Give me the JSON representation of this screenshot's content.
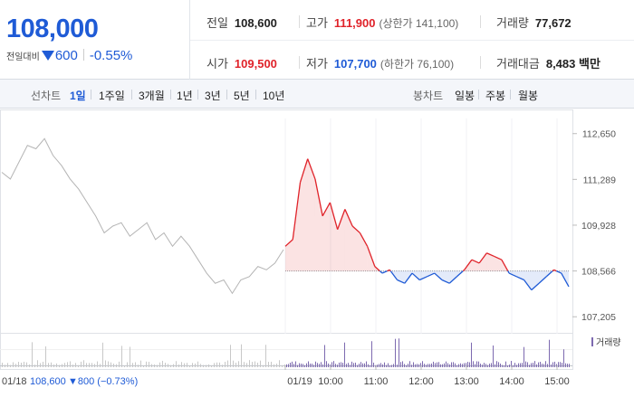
{
  "summary": {
    "price": "108,000",
    "change_label": "전일대비",
    "change_amount": "600",
    "change_pct": "-0.55%"
  },
  "stats": {
    "prev_close": {
      "label": "전일",
      "value": "108,600"
    },
    "high": {
      "label": "고가",
      "value": "111,900",
      "sub": "(상한가 141,100)"
    },
    "volume": {
      "label": "거래량",
      "value": "77,672"
    },
    "open": {
      "label": "시가",
      "value": "109,500"
    },
    "low": {
      "label": "저가",
      "value": "107,700",
      "sub": "(하한가 76,100)"
    },
    "trade_value": {
      "label": "거래대금",
      "value": "8,483 백만"
    }
  },
  "tabs": {
    "line_label": "선차트",
    "line_items": [
      "1일",
      "1주일",
      "3개월",
      "1년",
      "3년",
      "5년",
      "10년"
    ],
    "candle_label": "봉차트",
    "candle_items": [
      "일봉",
      "주봉",
      "월봉"
    ]
  },
  "colors": {
    "up": "#e0232a",
    "down": "#1f5bd6",
    "prev": "#b4b4b4",
    "volume": "#7d6ab0"
  },
  "chart_data": {
    "type": "line",
    "y_ticks": [
      "112,650",
      "111,289",
      "109,928",
      "108,566",
      "107,205"
    ],
    "y_tick_values": [
      112650,
      111289,
      109928,
      108566,
      107205
    ],
    "ylim": [
      106700,
      113100
    ],
    "baseline": 108566,
    "volume_legend": "거래량",
    "x_tick_labels": [
      "01/19",
      "10:00",
      "11:00",
      "12:00",
      "13:00",
      "14:00",
      "15:00"
    ],
    "prev_day_label": "01/18",
    "prev_day_close": "108,600",
    "prev_day_change": "▼800 (−0.73%)",
    "prev_day_series": {
      "name": "01/18",
      "values": [
        111500,
        111300,
        111800,
        112300,
        112200,
        112500,
        112000,
        111700,
        111300,
        111000,
        110600,
        110200,
        109700,
        109900,
        110000,
        109600,
        109800,
        110000,
        109500,
        109700,
        109300,
        109600,
        109300,
        108900,
        108500,
        108200,
        108300,
        107900,
        108300,
        108400,
        108700,
        108600,
        108800,
        109200
      ]
    },
    "today_series": {
      "name": "01/19",
      "values": [
        109300,
        109500,
        111200,
        111900,
        111300,
        110200,
        110600,
        109800,
        110400,
        109900,
        109700,
        109300,
        108700,
        108500,
        108600,
        108300,
        108200,
        108500,
        108300,
        108400,
        108500,
        108300,
        108200,
        108400,
        108600,
        108900,
        108800,
        109100,
        109000,
        108900,
        108500,
        108400,
        108300,
        108000,
        108200,
        108400,
        108600,
        108500,
        108100
      ]
    }
  }
}
